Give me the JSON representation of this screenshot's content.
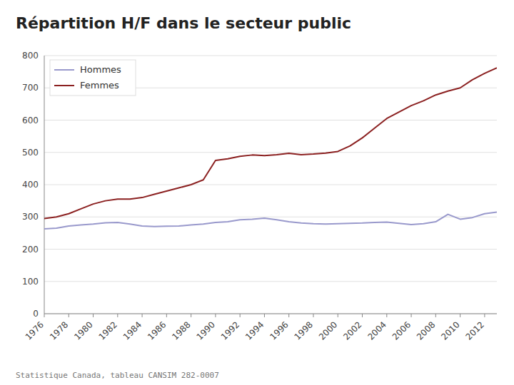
{
  "chart_data": {
    "type": "line",
    "title": "Répartition H/F dans le secteur public",
    "subtitle": "Statistique Canada, tableau CANSIM 282-0007",
    "x": [
      1976,
      1977,
      1978,
      1979,
      1980,
      1981,
      1982,
      1983,
      1984,
      1985,
      1986,
      1987,
      1988,
      1989,
      1990,
      1991,
      1992,
      1993,
      1994,
      1995,
      1996,
      1997,
      1998,
      1999,
      2000,
      2001,
      2002,
      2003,
      2004,
      2005,
      2006,
      2007,
      2008,
      2009,
      2010,
      2011,
      2012,
      2013
    ],
    "series": [
      {
        "name": "Hommes",
        "color": "#9999cc",
        "values": [
          263,
          265,
          272,
          275,
          278,
          282,
          283,
          278,
          272,
          270,
          271,
          272,
          275,
          278,
          283,
          285,
          291,
          293,
          296,
          291,
          285,
          281,
          279,
          278,
          279,
          280,
          281,
          283,
          284,
          280,
          276,
          279,
          285,
          308,
          293,
          298,
          310,
          315
        ]
      },
      {
        "name": "Femmes",
        "color": "#8b2020",
        "values": [
          295,
          300,
          310,
          325,
          340,
          350,
          355,
          355,
          360,
          370,
          380,
          390,
          400,
          415,
          475,
          480,
          488,
          492,
          490,
          493,
          497,
          493,
          495,
          498,
          503,
          520,
          545,
          575,
          605,
          625,
          645,
          660,
          678,
          690,
          700,
          725,
          745,
          762
        ]
      }
    ],
    "xlim": [
      1976,
      2013
    ],
    "xticks": [
      1976,
      1978,
      1980,
      1982,
      1984,
      1986,
      1988,
      1990,
      1992,
      1994,
      1996,
      1998,
      2000,
      2002,
      2004,
      2006,
      2008,
      2010,
      2012
    ],
    "ylim": [
      0,
      800
    ],
    "yticks": [
      0,
      100,
      200,
      300,
      400,
      500,
      600,
      700,
      800
    ],
    "grid": true,
    "legend": "upper left"
  }
}
